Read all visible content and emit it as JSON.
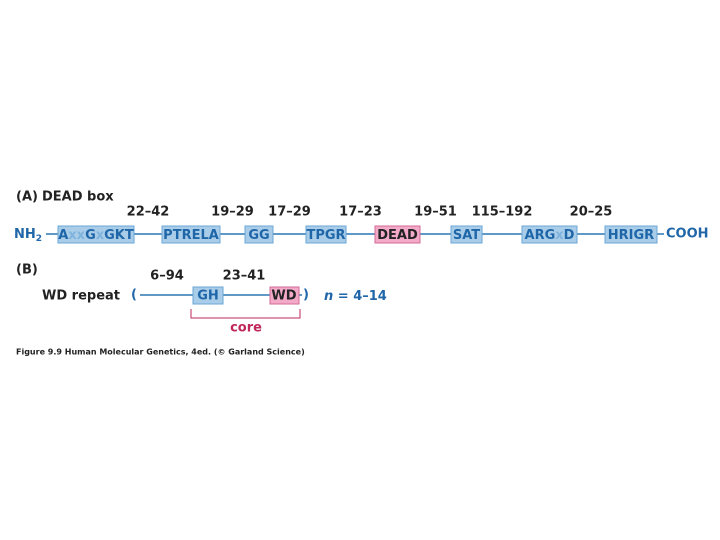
{
  "panel_a": {
    "label": "(A)",
    "title": "DEAD box",
    "n_terminus": [
      "NH",
      "2"
    ],
    "c_terminus": "COOH",
    "spacers": [
      "22–42",
      "19–29",
      "17–29",
      "17–23",
      "19–51",
      "115–192",
      "20–25"
    ],
    "motifs": [
      [
        "A",
        "xx",
        "G",
        "x",
        "GKT"
      ],
      [
        "PTRELA"
      ],
      [
        "GG"
      ],
      [
        "TPGR"
      ],
      [
        "DEAD"
      ],
      [
        "SAT"
      ],
      [
        "ARG",
        "x",
        "D"
      ],
      [
        "HRIGR"
      ]
    ]
  },
  "panel_b": {
    "label": "(B)",
    "title": "WD repeat",
    "open": "(",
    "close": ")",
    "repeat_count": [
      "n",
      " = 4–14"
    ],
    "spacers": [
      "6–94",
      "23–41"
    ],
    "motifs": [
      "GH",
      "WD"
    ],
    "core": "core"
  },
  "caption": "Figure 9.9 Human Molecular Genetics, 4ed. (© Garland Science)"
}
